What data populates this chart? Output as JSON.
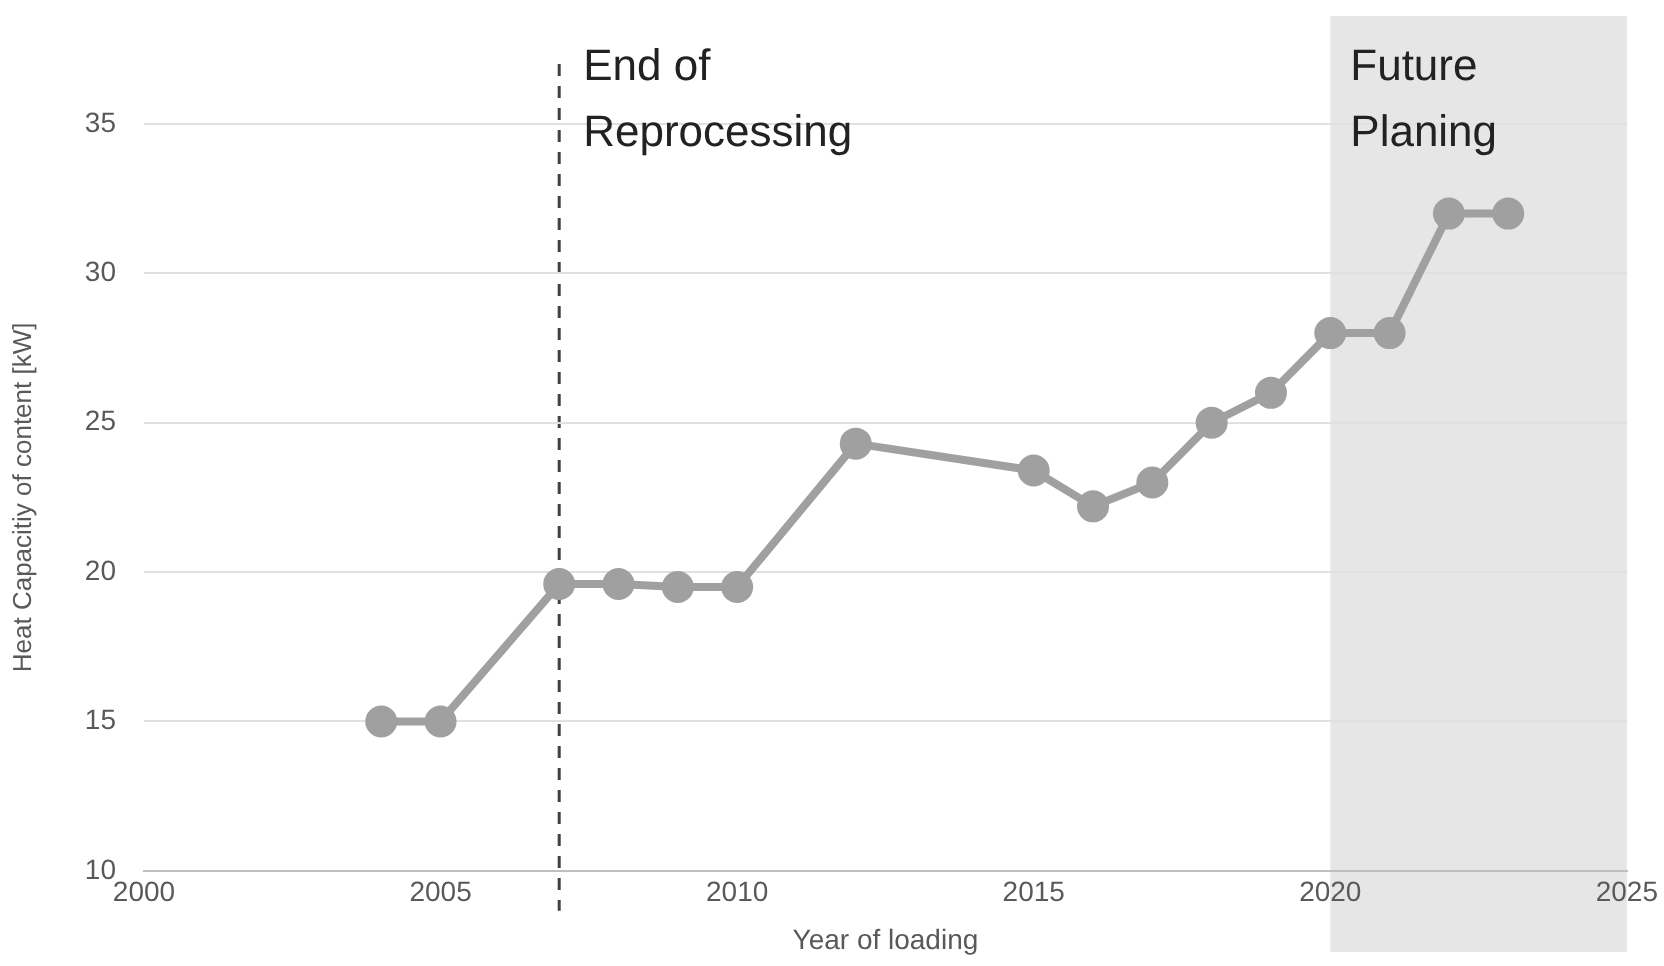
{
  "chart_data": {
    "type": "line",
    "xlabel": "Year of loading",
    "ylabel": "Heat Capacitiy of content [kW]",
    "x": [
      2004,
      2005,
      2007,
      2008,
      2009,
      2010,
      2012,
      2015,
      2016,
      2017,
      2018,
      2019,
      2020,
      2021,
      2022,
      2023
    ],
    "series": [
      {
        "color": "#a0a0a0",
        "values": [
          15,
          15,
          19.6,
          19.6,
          19.5,
          19.5,
          24.3,
          23.4,
          22.2,
          23,
          25,
          26,
          28,
          28,
          32,
          32
        ]
      }
    ],
    "xlim": [
      2000,
      2025
    ],
    "xticks": [
      2000,
      2005,
      2010,
      2015,
      2020,
      2025
    ],
    "ylim": [
      10,
      35
    ],
    "yticks": [
      10,
      15,
      20,
      25,
      30,
      35
    ],
    "grid": "y",
    "legend": false,
    "marker": "circle",
    "line_style": "solid",
    "ref_lines": [
      {
        "axis": "x",
        "value": 2007,
        "label": "End of Reprocessing",
        "color": "#404040",
        "line_style": "dashed"
      }
    ],
    "bands": [
      {
        "axis": "x",
        "from": 2020,
        "to": 2025,
        "label": "Future Planing",
        "color": "#e6e6e6"
      }
    ]
  }
}
